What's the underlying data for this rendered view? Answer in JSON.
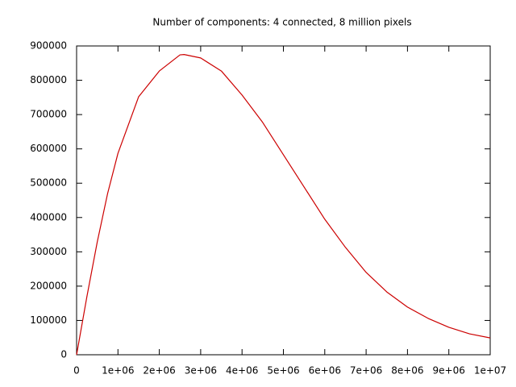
{
  "chart_data": {
    "type": "line",
    "title": "Number of components: 4 connected, 8 million pixels",
    "x": [
      0,
      250000,
      500000,
      750000,
      1000000,
      1500000,
      2000000,
      2500000,
      2600000,
      3000000,
      3500000,
      4000000,
      4500000,
      5000000,
      5500000,
      6000000,
      6500000,
      7000000,
      7500000,
      8000000,
      8500000,
      9000000,
      9500000,
      10000000
    ],
    "series": [
      {
        "color": "#cc0000",
        "values": [
          0,
          170000,
          329000,
          470000,
          587000,
          752000,
          827000,
          874000,
          875000,
          865000,
          827000,
          757000,
          677000,
          583000,
          489000,
          395000,
          313000,
          240000,
          183000,
          139000,
          106000,
          80000,
          61000,
          49000
        ]
      }
    ],
    "xlim": [
      0,
      10000000
    ],
    "xticks": [
      0,
      {
        "value": 1000000,
        "label": "1e+06"
      },
      {
        "value": 2000000,
        "label": "2e+06"
      },
      {
        "value": 3000000,
        "label": "3e+06"
      },
      {
        "value": 4000000,
        "label": "4e+06"
      },
      {
        "value": 5000000,
        "label": "5e+06"
      },
      {
        "value": 6000000,
        "label": "6e+06"
      },
      {
        "value": 7000000,
        "label": "7e+06"
      },
      {
        "value": 8000000,
        "label": "8e+06"
      },
      {
        "value": 9000000,
        "label": "9e+06"
      },
      {
        "value": 10000000,
        "label": "1e+07"
      }
    ],
    "ylim": [
      0,
      900000
    ],
    "yticks": [
      0,
      100000,
      200000,
      300000,
      400000,
      500000,
      600000,
      700000,
      800000,
      900000
    ],
    "grid": false
  }
}
